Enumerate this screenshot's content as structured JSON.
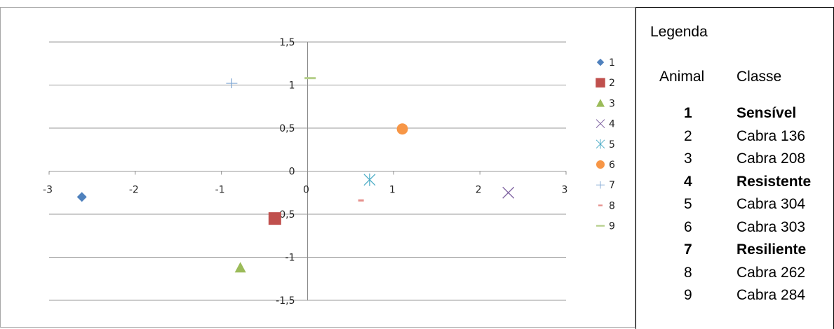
{
  "chart_data": {
    "type": "scatter",
    "xlim": [
      -3,
      3
    ],
    "ylim": [
      -1.5,
      1.5
    ],
    "x_ticks": [
      -3,
      -2,
      -1,
      0,
      1,
      2,
      3
    ],
    "y_ticks": [
      1.5,
      1,
      0.5,
      0,
      -0.5,
      -1,
      -1.5
    ],
    "x_tick_labels": [
      "-3",
      "-2",
      "-1",
      "0",
      "1",
      "2",
      "3"
    ],
    "y_tick_labels": [
      "1,5",
      "1",
      "0,5",
      "0",
      "-0,5",
      "-1",
      "-1,5"
    ],
    "grid": "horizontal",
    "legend_position": "right",
    "series": [
      {
        "name": "1",
        "x": -2.62,
        "y": -0.3,
        "marker": "diamond",
        "color": "#4f81bd"
      },
      {
        "name": "2",
        "x": -0.38,
        "y": -0.55,
        "marker": "square",
        "color": "#c0504d"
      },
      {
        "name": "3",
        "x": -0.78,
        "y": -1.12,
        "marker": "triangle",
        "color": "#9bbb59"
      },
      {
        "name": "4",
        "x": 2.33,
        "y": -0.25,
        "marker": "x",
        "color": "#8064a2"
      },
      {
        "name": "5",
        "x": 0.72,
        "y": -0.1,
        "marker": "asterisk",
        "color": "#4bacc6"
      },
      {
        "name": "6",
        "x": 1.1,
        "y": 0.49,
        "marker": "circle",
        "color": "#f79646"
      },
      {
        "name": "7",
        "x": -0.88,
        "y": 1.02,
        "marker": "plus",
        "color": "#7ea6d3"
      },
      {
        "name": "8",
        "x": 0.62,
        "y": -0.34,
        "marker": "dash",
        "color": "#e6908c"
      },
      {
        "name": "9",
        "x": 0.03,
        "y": 1.08,
        "marker": "longdash",
        "color": "#b5cf8a"
      }
    ]
  },
  "legend_table": {
    "title": "Legenda",
    "header_animal": "Animal",
    "header_classe": "Classe",
    "rows": [
      {
        "animal": "1",
        "classe": "Sensível",
        "bold": true
      },
      {
        "animal": "2",
        "classe": "Cabra 136",
        "bold": false
      },
      {
        "animal": "3",
        "classe": "Cabra 208",
        "bold": false
      },
      {
        "animal": "4",
        "classe": "Resistente",
        "bold": true
      },
      {
        "animal": "5",
        "classe": "Cabra 304",
        "bold": false
      },
      {
        "animal": "6",
        "classe": "Cabra 303",
        "bold": false
      },
      {
        "animal": "7",
        "classe": "Resiliente",
        "bold": true
      },
      {
        "animal": "8",
        "classe": "Cabra 262",
        "bold": false
      },
      {
        "animal": "9",
        "classe": "Cabra 284",
        "bold": false
      }
    ]
  }
}
